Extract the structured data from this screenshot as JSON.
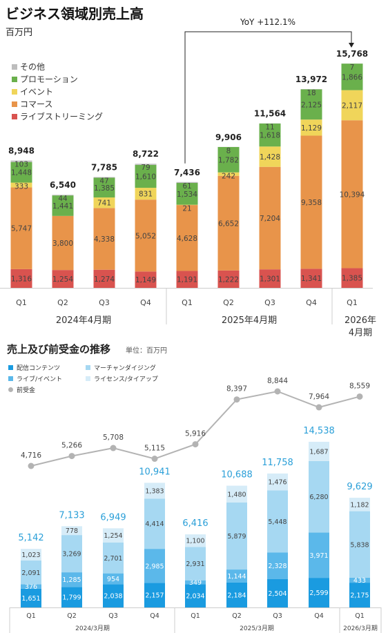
{
  "top": {
    "title": "ビジネス領域別売上高",
    "unit": "百万円",
    "yoy_label": "YoY +112.1%"
  },
  "bottom": {
    "title": "売上及び前受金の推移",
    "unit": "単位：百万円"
  },
  "colors": {
    "live_streaming": "#d9534f",
    "commerce": "#e8944a",
    "event": "#f0d55a",
    "promotion": "#6ab04c",
    "other": "#bdbdbd",
    "distribution": "#1a9be0",
    "live_event": "#5bb8ea",
    "merchandising": "#a6d8f2",
    "license": "#d6ecf8",
    "advance": "#b3b3b3",
    "total_blue": "#2a9fd8"
  },
  "chart_data": [
    {
      "type": "bar",
      "stacked": true,
      "title": "ビジネス領域別売上高",
      "ylabel": "百万円",
      "categories": [
        "Q1",
        "Q2",
        "Q3",
        "Q4",
        "Q1",
        "Q2",
        "Q3",
        "Q4",
        "Q1"
      ],
      "groups": [
        {
          "label": "2024年4月期",
          "from": 0,
          "to": 3
        },
        {
          "label": "2025年4月期",
          "from": 4,
          "to": 7
        },
        {
          "label": "2026年\n4月期",
          "from": 8,
          "to": 8
        }
      ],
      "series": [
        {
          "name": "ライブストリーミング",
          "color_key": "live_streaming",
          "values": [
            1316,
            1254,
            1274,
            1149,
            1191,
            1222,
            1301,
            1341,
            1385
          ]
        },
        {
          "name": "コマース",
          "color_key": "commerce",
          "values": [
            5747,
            3800,
            4338,
            5052,
            4628,
            6652,
            7204,
            9358,
            10394
          ]
        },
        {
          "name": "イベント",
          "color_key": "event",
          "values": [
            333,
            0,
            741,
            831,
            21,
            242,
            1428,
            1129,
            2117
          ]
        },
        {
          "name": "プロモーション",
          "color_key": "promotion",
          "values": [
            1448,
            1441,
            1385,
            1610,
            1534,
            1782,
            1618,
            2125,
            1866
          ]
        },
        {
          "name": "その他",
          "color_key": "other",
          "values": [
            103,
            44,
            47,
            79,
            61,
            8,
            11,
            18,
            7
          ]
        }
      ],
      "totals": [
        8948,
        6540,
        7785,
        8722,
        7436,
        9906,
        11564,
        13972,
        15768
      ],
      "annotation": "YoY +112.1%",
      "legend_position": "top-left"
    },
    {
      "type": "bar",
      "stacked": true,
      "title": "売上及び前受金の推移",
      "ylabel": "単位：百万円",
      "categories": [
        "Q1",
        "Q2",
        "Q3",
        "Q4",
        "Q1",
        "Q2",
        "Q3",
        "Q4",
        "Q1"
      ],
      "groups": [
        {
          "label": "2024/3月期",
          "from": 0,
          "to": 3
        },
        {
          "label": "2025/3月期",
          "from": 4,
          "to": 7
        },
        {
          "label": "2026/3月期",
          "from": 8,
          "to": 8
        }
      ],
      "series": [
        {
          "name": "配信コンテンツ",
          "color_key": "distribution",
          "values": [
            1651,
            1799,
            2038,
            2157,
            2034,
            2184,
            2504,
            2599,
            2175
          ]
        },
        {
          "name": "ライブ/イベント",
          "color_key": "live_event",
          "values": [
            376,
            1285,
            954,
            2985,
            349,
            1144,
            2328,
            3971,
            433
          ]
        },
        {
          "name": "マーチャンダイジング",
          "color_key": "merchandising",
          "values": [
            2091,
            3269,
            2701,
            4414,
            2931,
            5879,
            5448,
            6280,
            5838
          ]
        },
        {
          "name": "ライセンス/タイアップ",
          "color_key": "license",
          "values": [
            1023,
            778,
            1254,
            1383,
            1100,
            1480,
            1476,
            1687,
            1182
          ]
        }
      ],
      "totals": [
        5142,
        7133,
        6949,
        10941,
        6416,
        10688,
        11758,
        14538,
        9629
      ],
      "line": {
        "name": "前受金",
        "color_key": "advance",
        "values": [
          4716,
          5266,
          5708,
          5115,
          5916,
          8397,
          8844,
          7964,
          8559
        ]
      },
      "legend_position": "top-left"
    }
  ]
}
